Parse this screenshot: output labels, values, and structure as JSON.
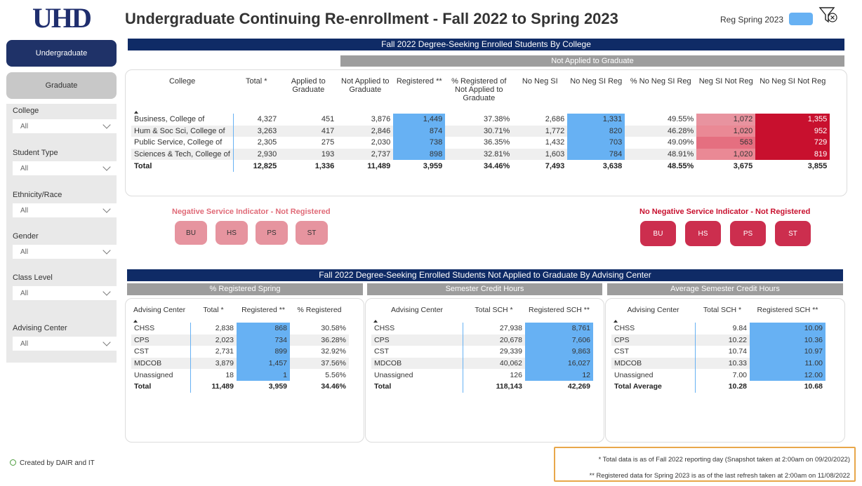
{
  "header": {
    "logo_text": "UHD",
    "title": "Undergraduate Continuing Re-enrollment  - Fall 2022 to Spring 2023",
    "legend_label": "Reg Spring 2023",
    "legend_color": "#67b1f3",
    "clear_filter_icon": "filter-clear-icon"
  },
  "sidebar": {
    "nav": {
      "undergraduate": "Undergraduate",
      "graduate": "Graduate"
    },
    "filters": [
      {
        "label": "College",
        "value": "All"
      },
      {
        "label": "Student Type",
        "value": "All"
      },
      {
        "label": "Ethnicity/Race",
        "value": "All"
      },
      {
        "label": "Gender",
        "value": "All"
      },
      {
        "label": "Class Level",
        "value": "All"
      },
      {
        "label": "Advising Center",
        "value": "All"
      }
    ],
    "created_by": "Created by DAIR and IT"
  },
  "college_table": {
    "banner": "Fall 2022 Degree-Seeking Enrolled Students By College",
    "sub_banner": "Not Applied to Graduate",
    "headers": [
      "College",
      "Total *",
      "Applied to Graduate",
      "Not Applied to Graduate",
      "Registered **",
      "% Registered of Not Applied to Graduate",
      "No Neg SI",
      "No Neg SI Reg",
      "% No Neg SI Reg",
      "Neg SI Not Reg",
      "No Neg SI Not Reg"
    ],
    "rows": [
      [
        "Business, College of",
        "4,327",
        "451",
        "3,876",
        "1,449",
        "37.38%",
        "2,686",
        "1,331",
        "49.55%",
        "1,072",
        "1,355"
      ],
      [
        "Hum & Soc Sci, College of",
        "3,263",
        "417",
        "2,846",
        "874",
        "30.71%",
        "1,772",
        "820",
        "46.28%",
        "1,020",
        "952"
      ],
      [
        "Public Service, College of",
        "2,305",
        "275",
        "2,030",
        "738",
        "36.35%",
        "1,432",
        "703",
        "49.09%",
        "563",
        "729"
      ],
      [
        "Sciences & Tech, College of",
        "2,930",
        "193",
        "2,737",
        "898",
        "32.81%",
        "1,603",
        "784",
        "48.91%",
        "1,020",
        "819"
      ]
    ],
    "total": [
      "Total",
      "12,825",
      "1,336",
      "11,489",
      "3,959",
      "34.46%",
      "7,493",
      "3,638",
      "48.55%",
      "3,675",
      "3,855"
    ]
  },
  "indicators": {
    "neg_title": "Negative Service Indicator - Not Registered",
    "noneg_title": "No Negative Service Indicator - Not Registered",
    "neg_buttons": [
      "BU",
      "HS",
      "PS",
      "ST"
    ],
    "noneg_buttons": [
      "BU",
      "HS",
      "PS",
      "ST"
    ]
  },
  "advising": {
    "banner": "Fall 2022 Degree-Seeking Enrolled Students Not Applied to Graduate By Advising Center",
    "pct_registered": {
      "title": "% Registered  Spring",
      "headers": [
        "Advising Center",
        "Total *",
        "Registered **",
        "% Registered"
      ],
      "rows": [
        [
          "CHSS",
          "2,838",
          "868",
          "30.58%"
        ],
        [
          "CPS",
          "2,023",
          "734",
          "36.28%"
        ],
        [
          "CST",
          "2,731",
          "899",
          "32.92%"
        ],
        [
          "MDCOB",
          "3,879",
          "1,457",
          "37.56%"
        ],
        [
          "Unassigned",
          "18",
          "1",
          "5.56%"
        ]
      ],
      "total": [
        "Total",
        "11,489",
        "3,959",
        "34.46%"
      ]
    },
    "sch": {
      "title": "Semester Credit Hours",
      "headers": [
        "Advising Center",
        "Total SCH *",
        "Registered SCH **"
      ],
      "rows": [
        [
          "CHSS",
          "27,938",
          "8,761"
        ],
        [
          "CPS",
          "20,678",
          "7,606"
        ],
        [
          "CST",
          "29,339",
          "9,863"
        ],
        [
          "MDCOB",
          "40,062",
          "16,027"
        ],
        [
          "Unassigned",
          "126",
          "12"
        ]
      ],
      "total": [
        "Total",
        "118,143",
        "42,269"
      ]
    },
    "avg_sch": {
      "title": "Average Semester Credit Hours",
      "headers": [
        "Advising Center",
        "Total SCH *",
        "Registered SCH **"
      ],
      "rows": [
        [
          "CHSS",
          "9.84",
          "10.09"
        ],
        [
          "CPS",
          "10.22",
          "10.36"
        ],
        [
          "CST",
          "10.74",
          "10.97"
        ],
        [
          "MDCOB",
          "10.33",
          "11.00"
        ],
        [
          "Unassigned",
          "7.00",
          "12.00"
        ]
      ],
      "total": [
        "Total Average",
        "10.28",
        "10.68"
      ]
    }
  },
  "notes": {
    "note1": "* Total data is as of Fall 2022 reporting day (Snapshot taken at 2:00am on 09/20/2022)",
    "note2": "** Registered data for Spring 2023 is as of the last refresh taken at 2:00am on 11/08/2022"
  }
}
